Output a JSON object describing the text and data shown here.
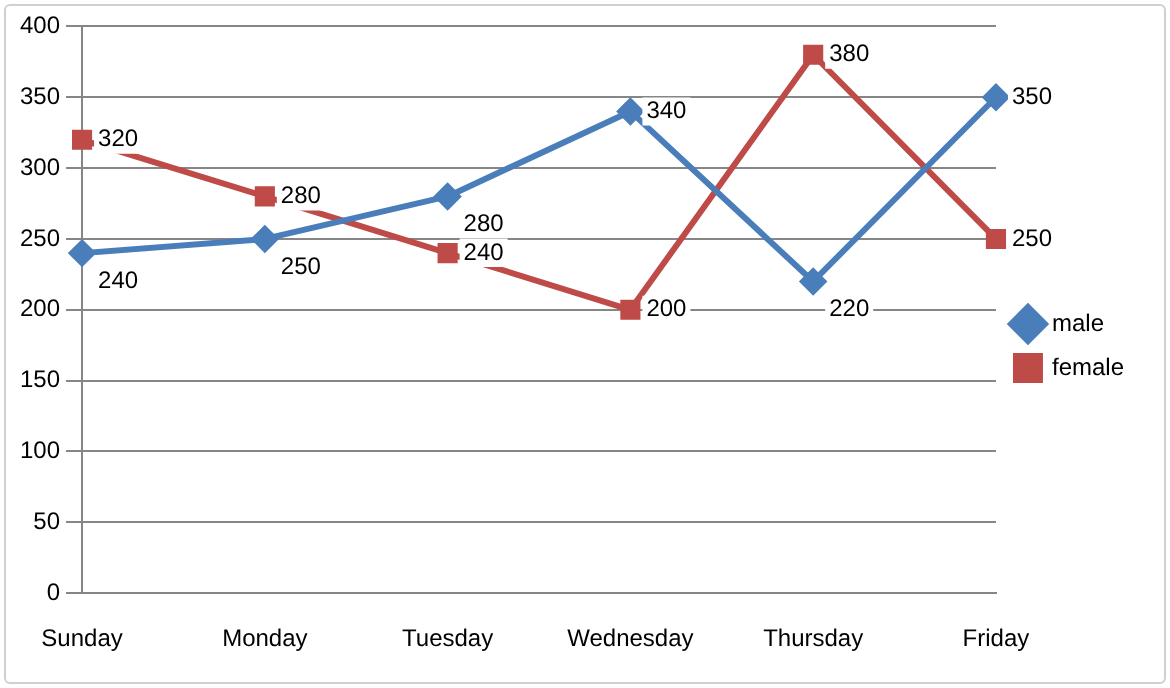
{
  "chart_data": {
    "type": "line",
    "categories": [
      "Sunday",
      "Monday",
      "Tuesday",
      "Wednesday",
      "Thursday",
      "Friday"
    ],
    "series": [
      {
        "name": "male",
        "color": "#4a7ebb",
        "marker": "diamond",
        "values": [
          240,
          250,
          280,
          340,
          220,
          350
        ]
      },
      {
        "name": "female",
        "color": "#be4b48",
        "marker": "square",
        "values": [
          320,
          280,
          240,
          200,
          380,
          250
        ]
      }
    ],
    "ylim": [
      0,
      400
    ],
    "yticks": [
      0,
      50,
      100,
      150,
      200,
      250,
      300,
      350,
      400
    ],
    "grid": "y",
    "legend": "right",
    "data_labels": true
  }
}
